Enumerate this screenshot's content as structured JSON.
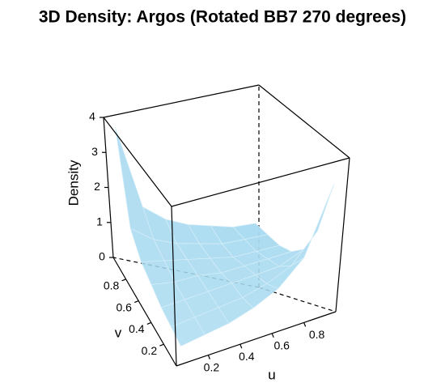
{
  "chart_data": {
    "type": "surface",
    "title": "3D Density: Argos (Rotated BB7 270 degrees)",
    "xlabel": "u",
    "ylabel": "v",
    "zlabel": "Density",
    "x": [
      0.05,
      0.2,
      0.35,
      0.5,
      0.65,
      0.8,
      0.95
    ],
    "y": [
      0.05,
      0.2,
      0.35,
      0.5,
      0.65,
      0.8,
      0.95
    ],
    "z": [
      [
        0.3,
        0.4,
        0.5,
        0.7,
        1.0,
        1.6,
        3.3
      ],
      [
        0.4,
        0.5,
        0.6,
        0.7,
        0.9,
        1.2,
        1.9
      ],
      [
        0.5,
        0.6,
        0.7,
        0.8,
        0.9,
        1.0,
        1.3
      ],
      [
        0.7,
        0.7,
        0.8,
        0.8,
        0.9,
        1.0,
        1.1
      ],
      [
        0.9,
        0.9,
        0.9,
        0.9,
        0.9,
        1.0,
        1.1
      ],
      [
        1.4,
        1.1,
        1.0,
        1.0,
        1.0,
        1.1,
        1.2
      ],
      [
        3.8,
        1.6,
        1.3,
        1.2,
        1.2,
        1.2,
        1.3
      ]
    ],
    "xlim": [
      0,
      1
    ],
    "ylim": [
      0,
      1
    ],
    "zlim": [
      0,
      4
    ],
    "xticks": [
      0.2,
      0.4,
      0.6,
      0.8
    ],
    "yticks": [
      0.2,
      0.4,
      0.6,
      0.8
    ],
    "zticks": [
      0,
      1,
      2,
      3,
      4
    ],
    "color": "#a8daf0"
  }
}
